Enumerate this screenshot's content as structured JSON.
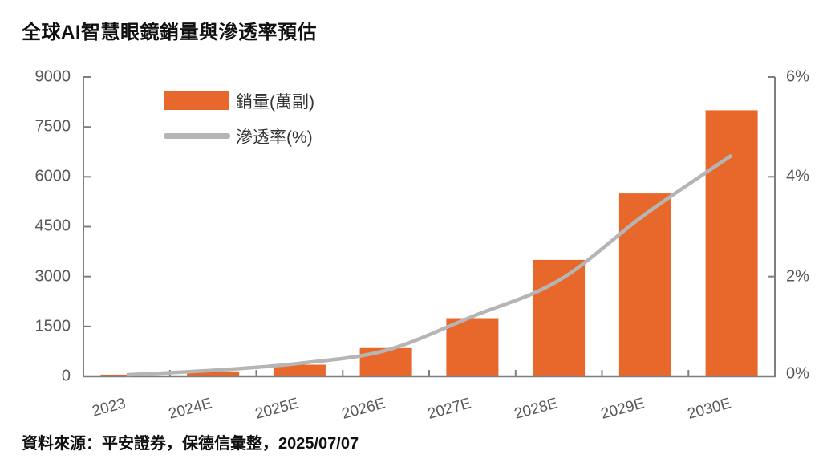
{
  "title": "全球AI智慧眼鏡銷量與滲透率預估",
  "source": "資料來源：平安證券，保德信彙整，2025/07/07",
  "colors": {
    "bar_orange": "#E8682C",
    "line_gray": "#B5B5B5",
    "axis_gray": "#7F7F7F",
    "tick_text_gray": "#595959",
    "text_black": "#111111"
  },
  "legend": {
    "sales_label": "銷量(萬副)",
    "penetration_label": "滲透率(%)"
  },
  "chart_data": {
    "type": "bar",
    "subtype": "bar-line-combo",
    "title": "全球AI智慧眼鏡銷量與滲透率預估",
    "categories": [
      "2023",
      "2024E",
      "2025E",
      "2026E",
      "2027E",
      "2028E",
      "2029E",
      "2030E"
    ],
    "series": [
      {
        "name": "銷量(萬副)",
        "type": "bar",
        "axis": "left",
        "color": "#E8682C",
        "values": [
          50,
          150,
          350,
          850,
          1750,
          3500,
          5500,
          8000
        ]
      },
      {
        "name": "滲透率(%)",
        "type": "line",
        "axis": "right",
        "color": "#B5B5B5",
        "values": [
          0.03,
          0.12,
          0.26,
          0.52,
          1.2,
          1.92,
          3.25,
          4.43
        ]
      }
    ],
    "left_axis": {
      "range": [
        0,
        9000
      ],
      "tick_values": [
        0,
        1500,
        3000,
        4500,
        6000,
        7500,
        9000
      ],
      "tick_labels": [
        "0",
        "1500",
        "3000",
        "4500",
        "6000",
        "7500",
        "9000"
      ]
    },
    "right_axis": {
      "range": [
        0,
        6
      ],
      "tick_values": [
        0,
        2,
        4,
        6
      ],
      "tick_labels": [
        "0%",
        "2%",
        "4%",
        "6%"
      ]
    },
    "grid": false,
    "legend_position": "top-left-inside",
    "xlabel": "",
    "ylabel": ""
  }
}
